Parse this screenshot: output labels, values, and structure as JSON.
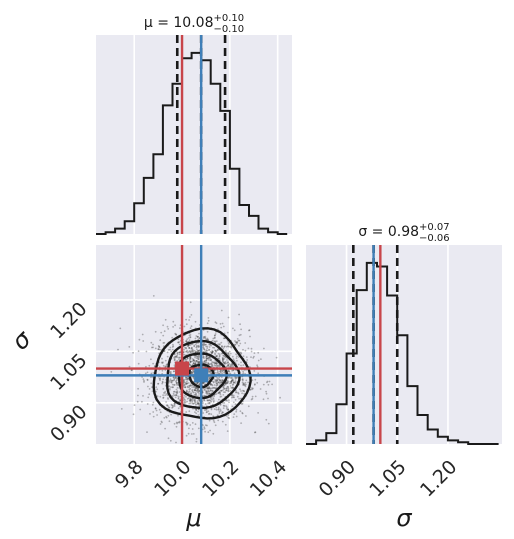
{
  "chart_data": {
    "type": "corner",
    "parameters": [
      {
        "symbol": "μ",
        "axis_label": "μ",
        "title_prefix": "μ = 10.08",
        "title_plus": "+0.10",
        "title_minus": "−0.10",
        "median": 10.08,
        "q16": 9.98,
        "q84": 10.18,
        "truth": 10.0,
        "mean": 10.08,
        "range": [
          9.64,
          10.46
        ],
        "ticks": [
          9.8,
          10.0,
          10.2,
          10.4
        ],
        "tick_labels": [
          "9.8",
          "10.0",
          "10.2",
          "10.4"
        ],
        "hist_bins": [
          9.64,
          9.68,
          9.72,
          9.76,
          9.8,
          9.84,
          9.88,
          9.92,
          9.96,
          10.0,
          10.04,
          10.08,
          10.12,
          10.16,
          10.2,
          10.24,
          10.28,
          10.32,
          10.36,
          10.4,
          10.44
        ],
        "hist_counts": [
          0.0,
          0.01,
          0.03,
          0.07,
          0.17,
          0.31,
          0.44,
          0.71,
          0.83,
          0.97,
          1.0,
          0.96,
          0.83,
          0.68,
          0.36,
          0.16,
          0.1,
          0.03,
          0.01,
          0.0
        ]
      },
      {
        "symbol": "σ",
        "axis_label": "σ",
        "title_prefix": "σ = 0.98",
        "title_plus": "+0.07",
        "title_minus": "−0.06",
        "median": 0.98,
        "q16": 0.92,
        "q84": 1.05,
        "truth": 1.0,
        "mean": 0.98,
        "range": [
          0.78,
          1.36
        ],
        "ticks": [
          0.9,
          1.05,
          1.2
        ],
        "tick_labels": [
          "0.90",
          "1.05",
          "1.20"
        ],
        "hist_bins": [
          0.78,
          0.81,
          0.84,
          0.87,
          0.9,
          0.93,
          0.96,
          0.99,
          1.02,
          1.05,
          1.08,
          1.11,
          1.14,
          1.17,
          1.2,
          1.23,
          1.26,
          1.29,
          1.32,
          1.35
        ],
        "hist_counts": [
          0.0,
          0.02,
          0.06,
          0.22,
          0.5,
          0.85,
          1.0,
          0.98,
          0.82,
          0.6,
          0.32,
          0.16,
          0.08,
          0.04,
          0.02,
          0.01,
          0.0,
          0.0,
          0.0
        ]
      }
    ],
    "joint": {
      "x_param": "μ",
      "y_param": "σ",
      "center": [
        10.08,
        0.98
      ],
      "std": [
        0.1,
        0.065
      ],
      "n_points": 2200,
      "contour_levels_sigma": [
        0.5,
        1.0,
        1.5,
        2.0
      ],
      "truth_point": [
        10.0,
        1.0
      ],
      "mean_point": [
        10.08,
        0.98
      ]
    },
    "colors": {
      "truth": "#c8454a",
      "mean": "#3f7fb8",
      "quantile": "#1a1a1a",
      "panel_background": "#eaeaf2"
    }
  }
}
